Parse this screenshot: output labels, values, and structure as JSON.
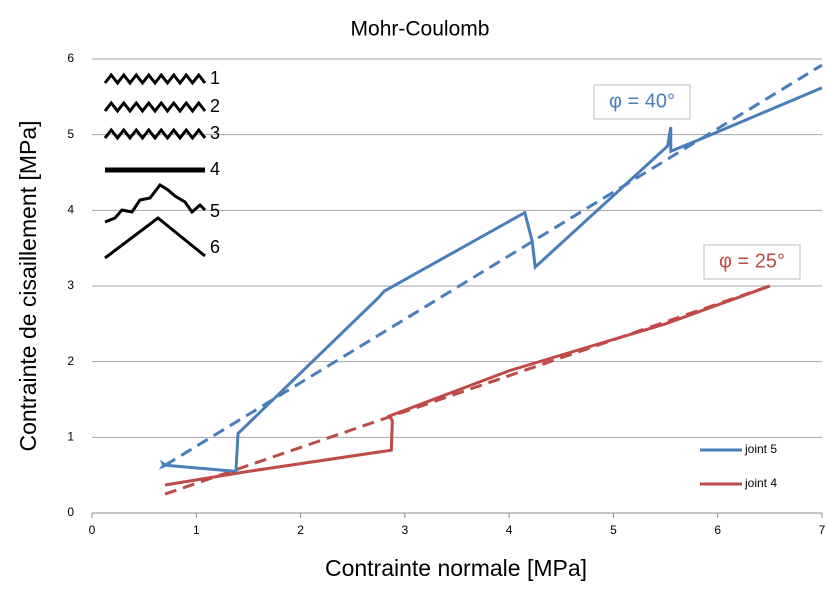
{
  "chart_data": {
    "type": "line",
    "title": "Mohr-Coulomb",
    "x_label": "Contrainte normale [MPa]",
    "y_label": "Contrainte de cisaillement [MPa]",
    "xlim": [
      0,
      7
    ],
    "xticks": [
      0,
      1,
      2,
      3,
      4,
      5,
      6,
      7
    ],
    "ylim": [
      0,
      6
    ],
    "yticks": [
      0,
      1,
      2,
      3,
      4,
      5,
      6
    ],
    "grid": true,
    "legend": "lower right",
    "series": [
      {
        "name": "joint 5",
        "color": "#4a7ebb",
        "x": [
          0.72,
          1.38,
          1.4,
          2.75,
          2.8,
          4.15,
          4.22,
          4.25,
          5.52,
          5.55,
          5.55,
          5.85,
          7.0
        ],
        "values": [
          0.63,
          0.55,
          1.05,
          2.85,
          2.93,
          3.97,
          3.6,
          3.25,
          4.85,
          5.1,
          4.78,
          4.95,
          5.62
        ]
      },
      {
        "name": "joint 4",
        "color": "#be4b48",
        "x": [
          0.7,
          1.5,
          2.87,
          2.88,
          2.85,
          4.0,
          5.5,
          6.5
        ],
        "values": [
          0.37,
          0.55,
          0.83,
          1.22,
          1.28,
          1.88,
          2.5,
          3.0
        ]
      }
    ],
    "trend_lines": [
      {
        "color": "#4a7ebb",
        "x": [
          0.7,
          7.0
        ],
        "values": [
          0.63,
          5.92
        ]
      },
      {
        "color": "#be4b48",
        "x": [
          0.7,
          6.5
        ],
        "values": [
          0.25,
          3.0
        ]
      }
    ],
    "annotations": [
      {
        "text": "φ = 40°",
        "color": "#4a7ebb"
      },
      {
        "text": "φ = 25°",
        "color": "#be4b48"
      }
    ],
    "profile_labels": [
      "1",
      "2",
      "3",
      "4",
      "5",
      "6"
    ]
  }
}
